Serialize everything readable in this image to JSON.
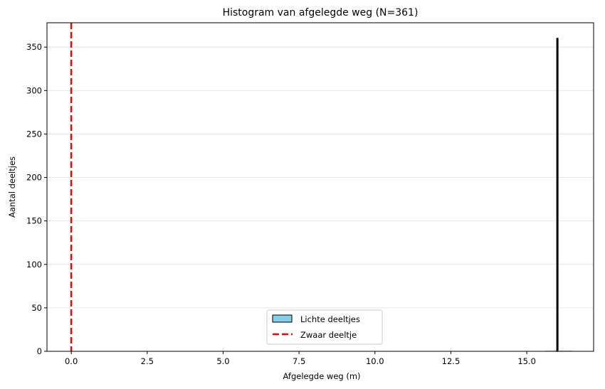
{
  "chart_data": {
    "type": "bar",
    "title": "Histogram van afgelegde weg (N=361)",
    "xlabel": "Afgelegde weg (m)",
    "ylabel": "Aantal deeltjes",
    "xlim": [
      -0.8,
      17.2
    ],
    "ylim": [
      0,
      378
    ],
    "xticks": [
      0.0,
      2.5,
      5.0,
      7.5,
      10.0,
      12.5,
      15.0
    ],
    "xtick_labels": [
      "0.0",
      "2.5",
      "5.0",
      "7.5",
      "10.0",
      "12.5",
      "15.0"
    ],
    "yticks": [
      0,
      50,
      100,
      150,
      200,
      250,
      300,
      350
    ],
    "ytick_labels": [
      "0",
      "50",
      "100",
      "150",
      "200",
      "250",
      "300",
      "350"
    ],
    "grid": {
      "axis": "y",
      "color": "#e6e6e6"
    },
    "series": [
      {
        "name": "Lichte deeltjes",
        "kind": "histogram",
        "color": "#87ceeb",
        "edgecolor": "#000000",
        "bins": [
          {
            "x0": 15.6,
            "x1": 15.99,
            "count": 0
          },
          {
            "x0": 15.99,
            "x1": 16.01,
            "count": 360
          },
          {
            "x0": 16.01,
            "x1": 16.5,
            "count": 0
          }
        ]
      },
      {
        "name": "Zwaar deeltje",
        "kind": "vline",
        "x": 0.0,
        "color": "#ff0000",
        "linestyle": "dashed"
      }
    ],
    "legend": {
      "position": "lower center",
      "entries": [
        "Lichte deeltjes",
        "Zwaar deeltje"
      ]
    }
  }
}
